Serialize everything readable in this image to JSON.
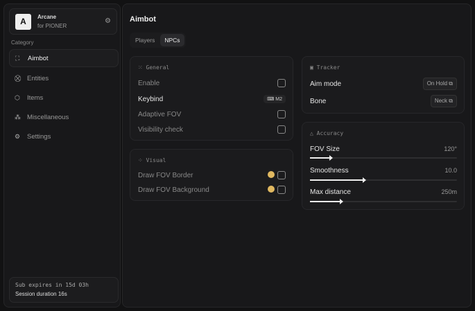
{
  "sidebar": {
    "brand": {
      "logo": "A",
      "name": "Arcane",
      "sub": "for PIONER"
    },
    "category": "Category",
    "items": [
      {
        "label": "Aimbot",
        "icon": "crosshair-icon",
        "active": true
      },
      {
        "label": "Entities",
        "icon": "entities-icon"
      },
      {
        "label": "Items",
        "icon": "cube-icon"
      },
      {
        "label": "Miscellaneous",
        "icon": "misc-icon"
      },
      {
        "label": "Settings",
        "icon": "gear-icon"
      }
    ],
    "footer": {
      "sub": "Sub expires in 15d 03h",
      "session": "Session duration 16s"
    }
  },
  "main": {
    "title": "Aimbot",
    "tabs": [
      {
        "label": "Players"
      },
      {
        "label": "NPCs",
        "active": true
      }
    ],
    "general": {
      "title": "General",
      "enable": "Enable",
      "keybind": "Keybind",
      "keybind_value": "M2",
      "adaptive": "Adaptive FOV",
      "visibility": "Visibility check"
    },
    "visual": {
      "title": "Visual",
      "border": "Draw FOV Border",
      "background": "Draw FOV Background",
      "color": "#e0b860"
    },
    "tracker": {
      "title": "Tracker",
      "aim_mode": "Aim mode",
      "aim_mode_value": "On Hold",
      "bone": "Bone",
      "bone_value": "Neck"
    },
    "accuracy": {
      "title": "Accuracy",
      "sliders": [
        {
          "label": "FOV Size",
          "value": "120°",
          "fraction": 0.14
        },
        {
          "label": "Smoothness",
          "value": "10.0",
          "fraction": 0.37
        },
        {
          "label": "Max distance",
          "value": "250m",
          "fraction": 0.21
        }
      ]
    }
  }
}
